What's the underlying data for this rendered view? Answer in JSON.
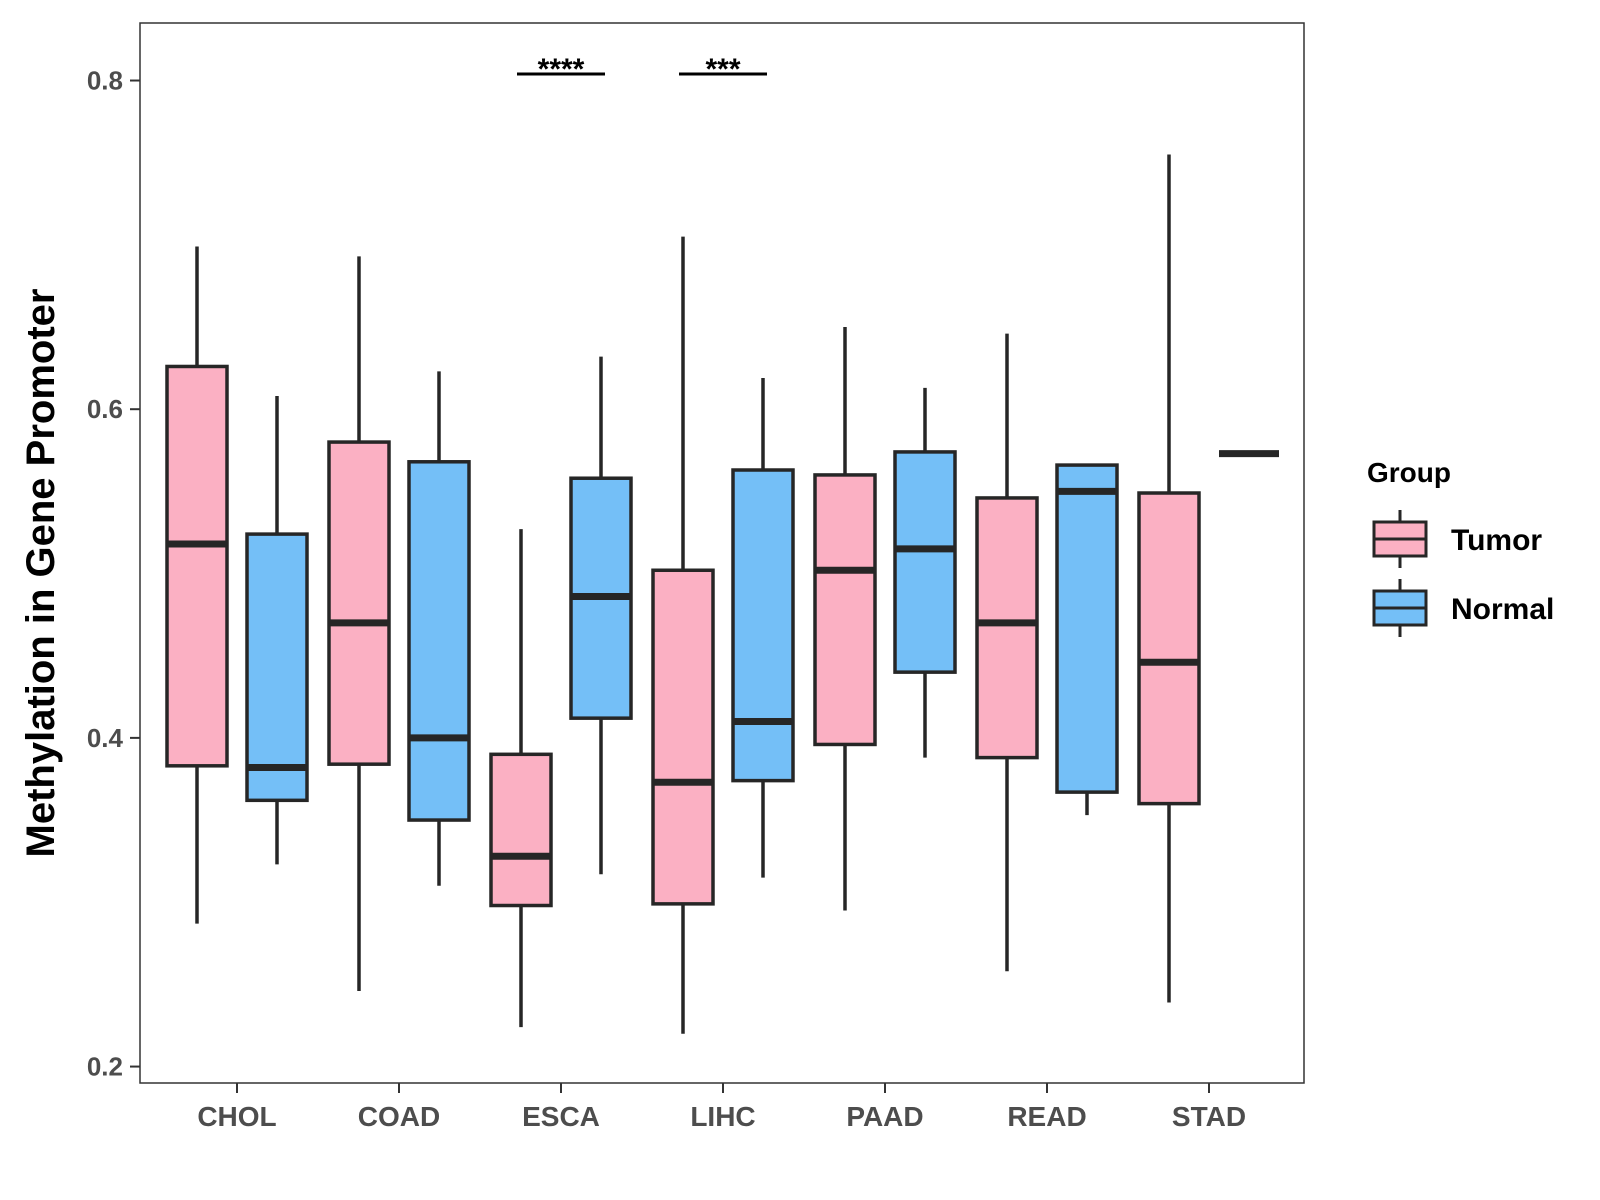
{
  "chart_data": {
    "type": "boxplot",
    "title": "",
    "xlabel": "",
    "ylabel": "Methylation in Gene Promoter",
    "ylim": [
      0.19,
      0.835
    ],
    "yticks": [
      0.2,
      0.4,
      0.6,
      0.8
    ],
    "ytick_labels": [
      "0.2",
      "0.4",
      "0.6",
      "0.8"
    ],
    "categories": [
      "CHOL",
      "COAD",
      "ESCA",
      "LIHC",
      "PAAD",
      "READ",
      "STAD"
    ],
    "grid": false,
    "legend": {
      "title": "Group",
      "position": "right",
      "entries": [
        {
          "name": "Tumor",
          "color": "#FBB0C3"
        },
        {
          "name": "Normal",
          "color": "#74BFF7"
        }
      ]
    },
    "series": [
      {
        "name": "Tumor",
        "color": "#FBB0C3",
        "boxes": [
          {
            "category": "CHOL",
            "min": 0.287,
            "q1": 0.383,
            "median": 0.518,
            "q3": 0.626,
            "max": 0.699
          },
          {
            "category": "COAD",
            "min": 0.246,
            "q1": 0.384,
            "median": 0.47,
            "q3": 0.58,
            "max": 0.693
          },
          {
            "category": "ESCA",
            "min": 0.224,
            "q1": 0.298,
            "median": 0.328,
            "q3": 0.39,
            "max": 0.527
          },
          {
            "category": "LIHC",
            "min": 0.22,
            "q1": 0.299,
            "median": 0.373,
            "q3": 0.502,
            "max": 0.705
          },
          {
            "category": "PAAD",
            "min": 0.295,
            "q1": 0.396,
            "median": 0.502,
            "q3": 0.56,
            "max": 0.65
          },
          {
            "category": "READ",
            "min": 0.258,
            "q1": 0.388,
            "median": 0.47,
            "q3": 0.546,
            "max": 0.646
          },
          {
            "category": "STAD",
            "min": 0.239,
            "q1": 0.36,
            "median": 0.446,
            "q3": 0.549,
            "max": 0.755
          }
        ]
      },
      {
        "name": "Normal",
        "color": "#74BFF7",
        "boxes": [
          {
            "category": "CHOL",
            "min": 0.323,
            "q1": 0.362,
            "median": 0.382,
            "q3": 0.524,
            "max": 0.608
          },
          {
            "category": "COAD",
            "min": 0.31,
            "q1": 0.35,
            "median": 0.4,
            "q3": 0.568,
            "max": 0.623
          },
          {
            "category": "ESCA",
            "min": 0.317,
            "q1": 0.412,
            "median": 0.486,
            "q3": 0.558,
            "max": 0.632
          },
          {
            "category": "LIHC",
            "min": 0.315,
            "q1": 0.374,
            "median": 0.41,
            "q3": 0.563,
            "max": 0.619
          },
          {
            "category": "PAAD",
            "min": 0.388,
            "q1": 0.44,
            "median": 0.515,
            "q3": 0.574,
            "max": 0.613
          },
          {
            "category": "READ",
            "min": 0.353,
            "q1": 0.367,
            "median": 0.55,
            "q3": 0.566,
            "max": 0.566
          },
          {
            "category": "STAD",
            "min": 0.573,
            "q1": 0.573,
            "median": 0.573,
            "q3": 0.573,
            "max": 0.573
          }
        ]
      }
    ],
    "annotations": [
      {
        "category": "ESCA",
        "label": "****",
        "y": 0.804
      },
      {
        "category": "LIHC",
        "label": "***",
        "y": 0.804
      }
    ]
  }
}
